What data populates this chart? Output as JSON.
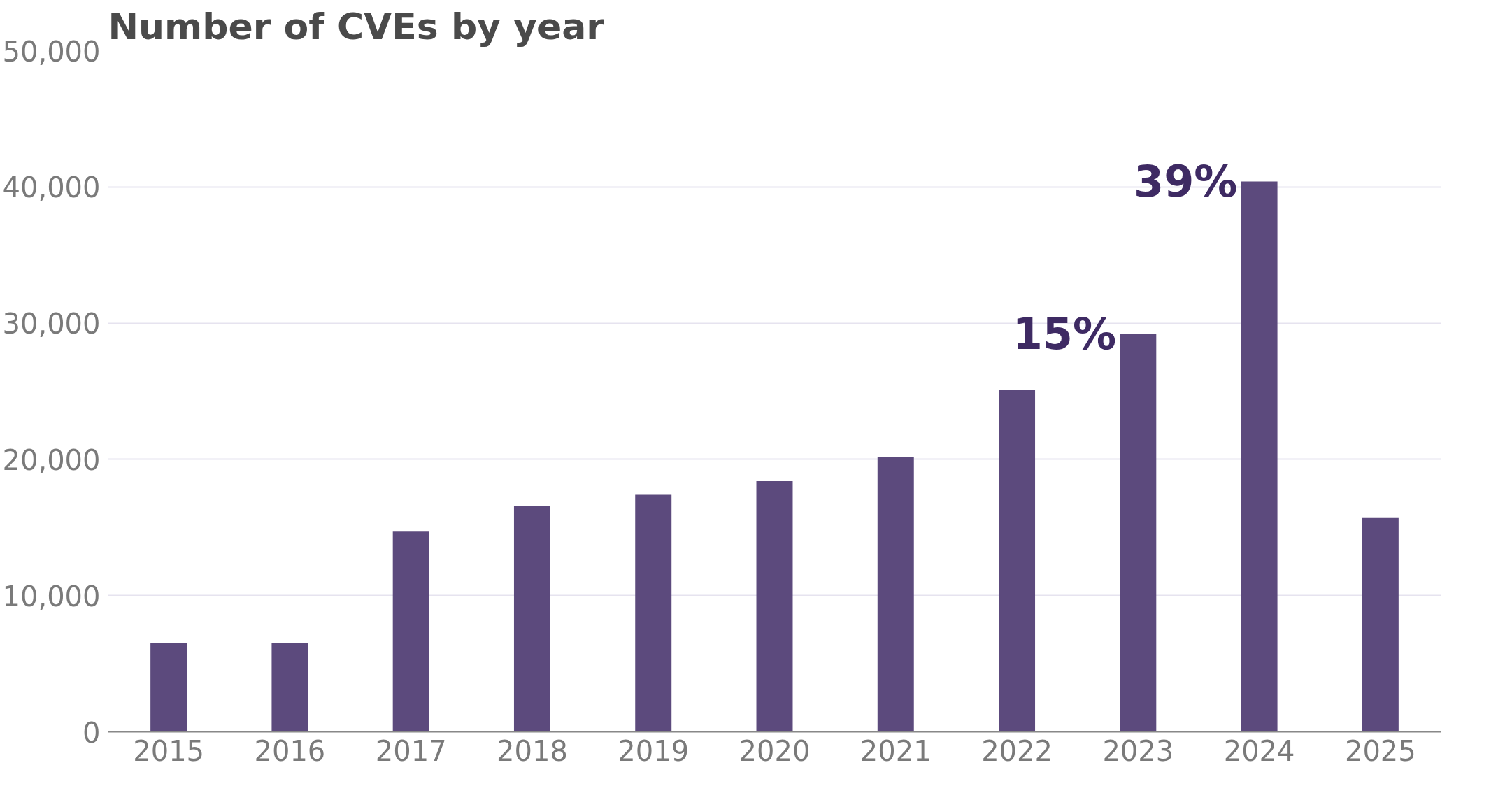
{
  "chart_data": {
    "type": "bar",
    "title": "Number of CVEs by year",
    "categories": [
      "2015",
      "2016",
      "2017",
      "2018",
      "2019",
      "2020",
      "2021",
      "2022",
      "2023",
      "2024",
      "2025"
    ],
    "values": [
      6500,
      6500,
      14700,
      16600,
      17400,
      18400,
      20200,
      25100,
      29200,
      40400,
      15700
    ],
    "color": "#5c4a7d",
    "ylim": [
      0,
      50000
    ],
    "yticks": [
      {
        "value": 0,
        "label": "0"
      },
      {
        "value": 10000,
        "label": "10,000"
      },
      {
        "value": 20000,
        "label": "20,000"
      },
      {
        "value": 30000,
        "label": "30,000"
      },
      {
        "value": 40000,
        "label": "40,000"
      },
      {
        "value": 50000,
        "label": "50,000"
      }
    ],
    "grid": "y",
    "annotations": [
      {
        "text": "15%",
        "x": "2023",
        "y": 29200
      },
      {
        "text": "39%",
        "x": "2024",
        "y": 40400
      }
    ]
  }
}
